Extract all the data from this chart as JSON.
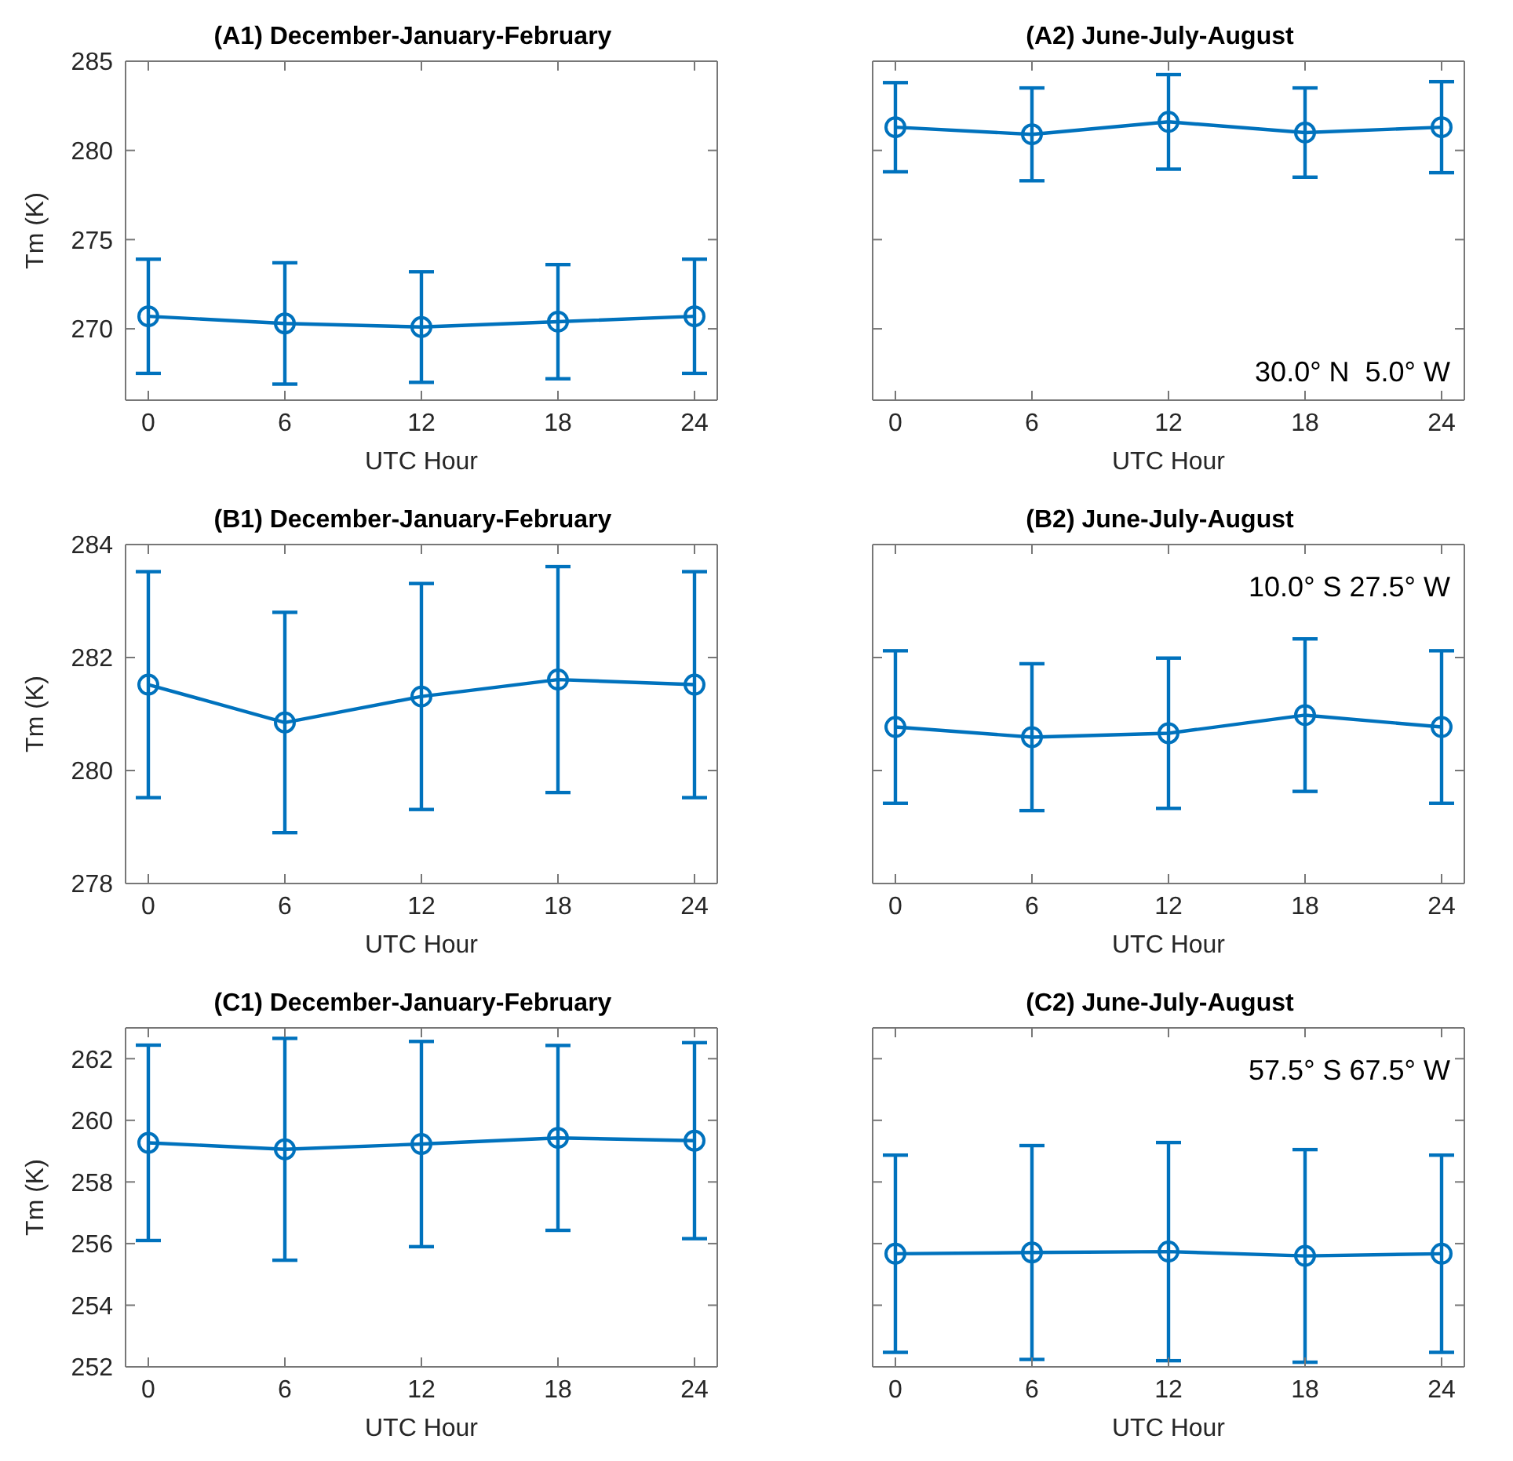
{
  "chart_data": [
    {
      "type": "line",
      "title": "(A1) December-January-February",
      "xlabel": "UTC Hour",
      "ylabel": "Tm (K)",
      "x": [
        0,
        6,
        12,
        18,
        24
      ],
      "xlim": [
        -1,
        25
      ],
      "xticks": [
        0,
        6,
        12,
        18,
        24
      ],
      "ylim": [
        266,
        285
      ],
      "yticks": [
        270,
        275,
        280,
        285
      ],
      "marker": "circle",
      "series": [
        {
          "color": "#0072bd",
          "values": [
            270.7,
            270.3,
            270.1,
            270.4,
            270.7
          ],
          "errors": [
            3.2,
            3.4,
            3.1,
            3.2,
            3.2
          ]
        }
      ]
    },
    {
      "type": "line",
      "title": "(A2) June-July-August",
      "xlabel": "UTC Hour",
      "x": [
        0,
        6,
        12,
        18,
        24
      ],
      "xlim": [
        -1,
        25
      ],
      "xticks": [
        0,
        6,
        12,
        18,
        24
      ],
      "ylim": [
        266,
        285
      ],
      "yticks": [
        270,
        275,
        280,
        285
      ],
      "tick_labels": "x",
      "marker": "circle",
      "annotations": [
        "30.0° N  5.0° W"
      ],
      "series": [
        {
          "color": "#0072bd",
          "values": [
            281.3,
            280.9,
            281.6,
            281.0,
            281.3
          ],
          "errors": [
            2.5,
            2.6,
            2.65,
            2.5,
            2.55
          ]
        }
      ]
    },
    {
      "type": "line",
      "title": "(B1) December-January-February",
      "xlabel": "UTC Hour",
      "ylabel": "Tm (K)",
      "x": [
        0,
        6,
        12,
        18,
        24
      ],
      "xlim": [
        -1,
        25
      ],
      "xticks": [
        0,
        6,
        12,
        18,
        24
      ],
      "ylim": [
        278,
        284
      ],
      "yticks": [
        278,
        280,
        282,
        284
      ],
      "marker": "circle",
      "series": [
        {
          "color": "#0072bd",
          "values": [
            281.52,
            280.85,
            281.31,
            281.61,
            281.52
          ],
          "errors": [
            2.0,
            1.95,
            2.0,
            2.0,
            2.0
          ]
        }
      ]
    },
    {
      "type": "line",
      "title": "(B2) June-July-August",
      "xlabel": "UTC Hour",
      "x": [
        0,
        6,
        12,
        18,
        24
      ],
      "xlim": [
        -1,
        25
      ],
      "xticks": [
        0,
        6,
        12,
        18,
        24
      ],
      "ylim": [
        278,
        284
      ],
      "yticks": [
        278,
        280,
        282,
        284
      ],
      "tick_labels": "x",
      "marker": "circle",
      "annotations": [
        "10.0° S 27.5° W"
      ],
      "series": [
        {
          "color": "#0072bd",
          "values": [
            280.77,
            280.59,
            280.66,
            280.98,
            280.77
          ],
          "errors": [
            1.35,
            1.3,
            1.33,
            1.35,
            1.35
          ]
        }
      ]
    },
    {
      "type": "line",
      "title": "(C1) December-January-February",
      "xlabel": "UTC Hour",
      "ylabel": "Tm (K)",
      "x": [
        0,
        6,
        12,
        18,
        24
      ],
      "xlim": [
        -1,
        25
      ],
      "xticks": [
        0,
        6,
        12,
        18,
        24
      ],
      "ylim": [
        252,
        263
      ],
      "yticks": [
        252,
        254,
        256,
        258,
        260,
        262
      ],
      "marker": "circle",
      "series": [
        {
          "color": "#0072bd",
          "values": [
            259.27,
            259.06,
            259.23,
            259.43,
            259.34
          ],
          "errors": [
            3.17,
            3.6,
            3.33,
            3.0,
            3.18
          ]
        }
      ]
    },
    {
      "type": "line",
      "title": "(C2) June-July-August",
      "xlabel": "UTC Hour",
      "x": [
        0,
        6,
        12,
        18,
        24
      ],
      "xlim": [
        -1,
        25
      ],
      "xticks": [
        0,
        6,
        12,
        18,
        24
      ],
      "ylim": [
        252,
        263
      ],
      "yticks": [
        252,
        254,
        256,
        258,
        260,
        262
      ],
      "tick_labels": "x",
      "marker": "circle",
      "annotations": [
        "57.5° S 67.5° W"
      ],
      "series": [
        {
          "color": "#0072bd",
          "values": [
            255.67,
            255.71,
            255.74,
            255.6,
            255.67
          ],
          "errors": [
            3.2,
            3.47,
            3.54,
            3.45,
            3.2
          ]
        }
      ]
    }
  ]
}
